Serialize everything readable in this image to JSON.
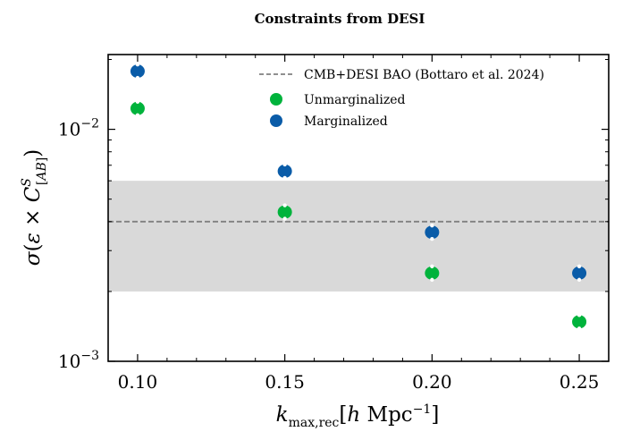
{
  "chart_data": {
    "type": "scatter",
    "title": "Constraints from DESI",
    "xlabel": "k_max,rec [h Mpc^-1]",
    "ylabel": "σ(ε × C^S_[AB])",
    "xlim": [
      0.09,
      0.26
    ],
    "ylim": [
      0.001,
      0.021
    ],
    "yscale": "log",
    "x_ticks": [
      0.1,
      0.15,
      0.2,
      0.25
    ],
    "x_tick_labels": [
      "0.10",
      "0.15",
      "0.20",
      "0.25"
    ],
    "y_major_ticks": [
      0.001,
      0.01
    ],
    "y_tick_labels": [
      {
        "base": "10",
        "exp": "−3"
      },
      {
        "base": "10",
        "exp": "−2"
      }
    ],
    "series": [
      {
        "name": "Unmarginalized",
        "color": "#00b33c",
        "x": [
          0.1,
          0.15,
          0.2,
          0.25
        ],
        "y": [
          0.0123,
          0.0044,
          0.0024,
          0.00148
        ]
      },
      {
        "name": "Marginalized",
        "color": "#0a5ca8",
        "x": [
          0.1,
          0.15,
          0.2,
          0.25
        ],
        "y": [
          0.0178,
          0.0066,
          0.0036,
          0.0024
        ]
      }
    ],
    "reference": {
      "label": "CMB+DESI BAO (Bottaro et al. 2024)",
      "value": 0.004,
      "band": [
        0.002,
        0.006
      ],
      "line_color": "#808080",
      "band_color": "#d9d9d9"
    },
    "legend_position": "top-right",
    "grid": false
  }
}
